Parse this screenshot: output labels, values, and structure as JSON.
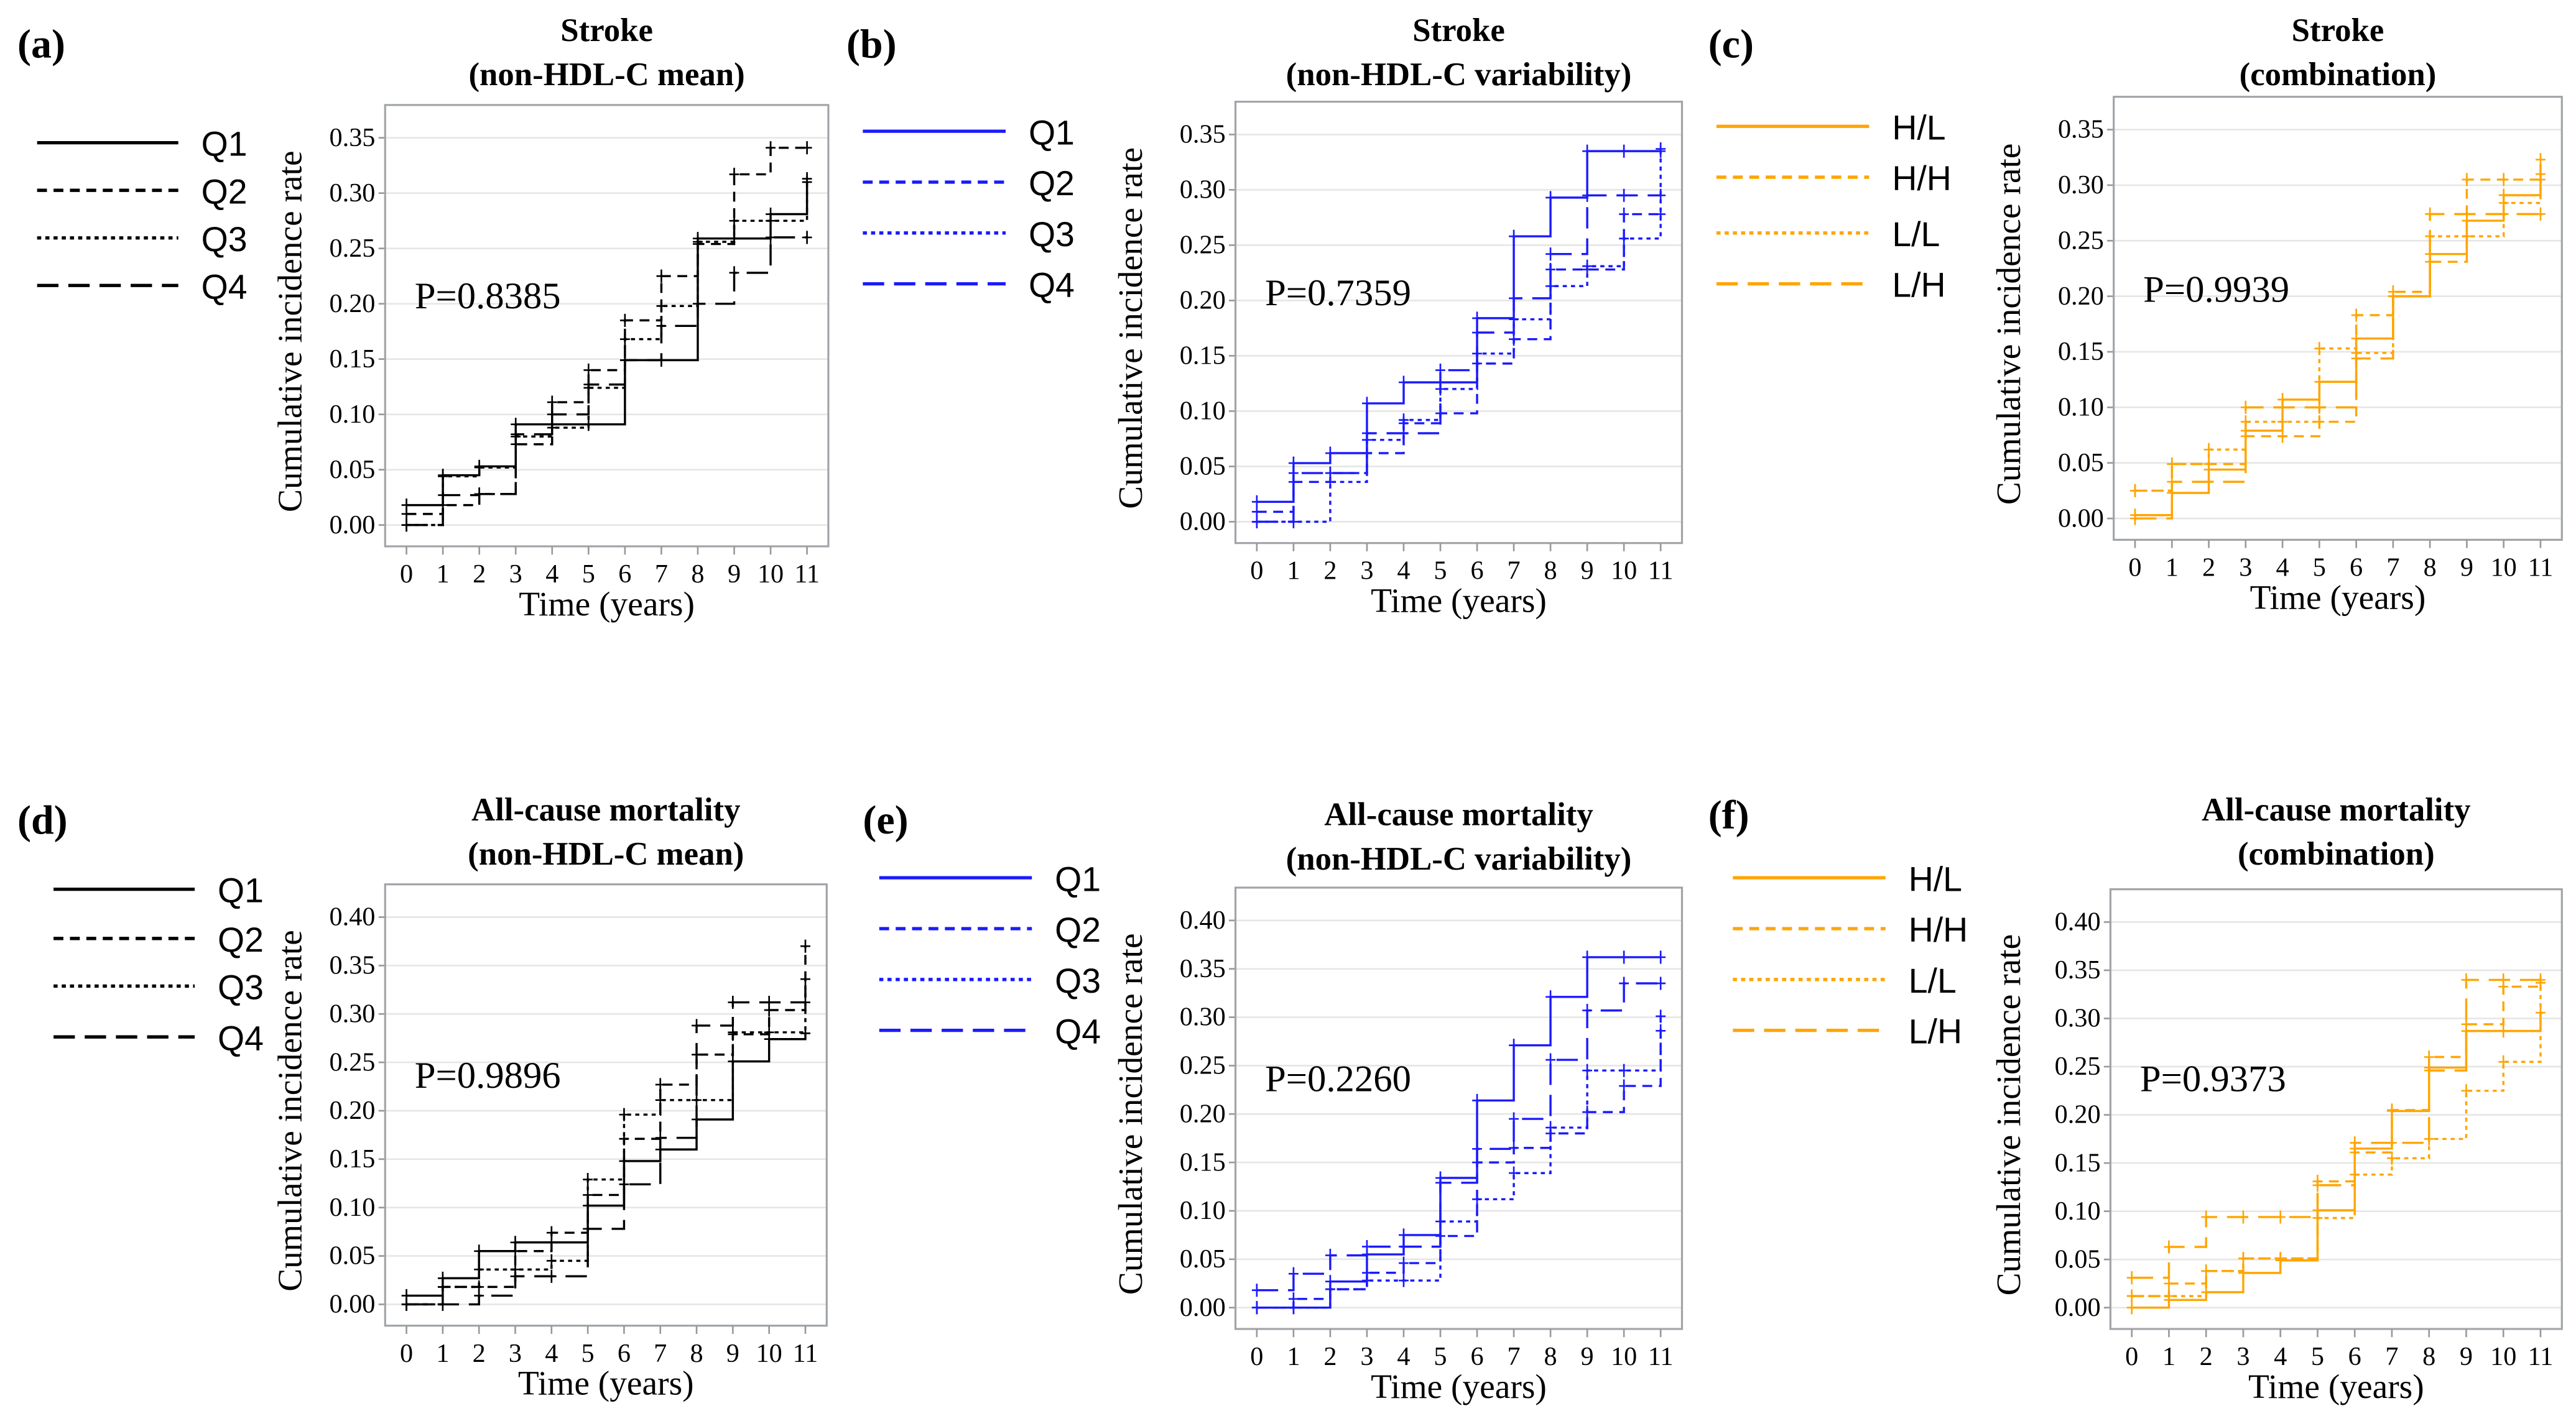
{
  "chart_data": [
    {
      "panel_label": "(a)",
      "type": "line",
      "step": true,
      "title": [
        "Stroke",
        "(non-HDL-C mean)"
      ],
      "xlabel": "Time (years)",
      "ylabel": "Cumulative incidence rate",
      "x": [
        0,
        1,
        2,
        3,
        4,
        5,
        6,
        7,
        8,
        9,
        10,
        11
      ],
      "xticks": [
        "0",
        "1",
        "2",
        "3",
        "4",
        "5",
        "6",
        "7",
        "8",
        "9",
        "10",
        "11"
      ],
      "yticks": [
        "0.00",
        "0.05",
        "0.10",
        "0.15",
        "0.20",
        "0.25",
        "0.30",
        "0.35"
      ],
      "ylim": [
        0,
        0.35
      ],
      "grid": true,
      "legend": "left",
      "p_value": "P=0.8385",
      "series": [
        {
          "name": "Q1",
          "color": "#000000",
          "linestyle": "solid",
          "values": [
            0.018,
            0.045,
            0.053,
            0.091,
            0.091,
            0.091,
            0.149,
            0.149,
            0.259,
            0.259,
            0.281,
            0.31
          ]
        },
        {
          "name": "Q2",
          "color": "#000000",
          "linestyle": "dashed",
          "values": [
            0.01,
            0.018,
            0.028,
            0.073,
            0.111,
            0.14,
            0.185,
            0.225,
            0.254,
            0.317,
            0.341,
            0.341
          ]
        },
        {
          "name": "Q3",
          "color": "#000000",
          "linestyle": "dotted",
          "values": [
            0.0,
            0.044,
            0.052,
            0.08,
            0.088,
            0.124,
            0.168,
            0.198,
            0.256,
            0.275,
            0.275,
            0.313
          ]
        },
        {
          "name": "Q4",
          "color": "#000000",
          "linestyle": "longdash",
          "values": [
            0.0,
            0.027,
            0.028,
            0.082,
            0.1,
            0.127,
            0.149,
            0.18,
            0.2,
            0.228,
            0.26,
            0.26
          ]
        }
      ]
    },
    {
      "panel_label": "(b)",
      "type": "line",
      "step": true,
      "title": [
        "Stroke",
        "(non-HDL-C variability)"
      ],
      "xlabel": "Time (years)",
      "ylabel": "Cumulative incidence rate",
      "x": [
        0,
        1,
        2,
        3,
        4,
        5,
        6,
        7,
        8,
        9,
        10,
        11
      ],
      "xticks": [
        "0",
        "1",
        "2",
        "3",
        "4",
        "5",
        "6",
        "7",
        "8",
        "9",
        "10",
        "11"
      ],
      "yticks": [
        "0.00",
        "0.05",
        "0.10",
        "0.15",
        "0.20",
        "0.25",
        "0.30",
        "0.35"
      ],
      "ylim": [
        0,
        0.35
      ],
      "grid": true,
      "legend": "left",
      "p_value": "P=0.7359",
      "series": [
        {
          "name": "Q1",
          "color": "#1a1aff",
          "linestyle": "solid",
          "values": [
            0.018,
            0.053,
            0.062,
            0.107,
            0.126,
            0.126,
            0.184,
            0.258,
            0.293,
            0.335,
            0.335,
            0.335
          ]
        },
        {
          "name": "Q2",
          "color": "#1a1aff",
          "linestyle": "dashed",
          "values": [
            0.009,
            0.036,
            0.044,
            0.062,
            0.089,
            0.098,
            0.143,
            0.165,
            0.228,
            0.228,
            0.278,
            0.278
          ]
        },
        {
          "name": "Q3",
          "color": "#1a1aff",
          "linestyle": "dotted",
          "values": [
            0.0,
            0.0,
            0.036,
            0.074,
            0.092,
            0.12,
            0.152,
            0.183,
            0.213,
            0.231,
            0.256,
            0.337
          ]
        },
        {
          "name": "Q4",
          "color": "#1a1aff",
          "linestyle": "longdash",
          "values": [
            0.0,
            0.044,
            0.044,
            0.08,
            0.08,
            0.137,
            0.171,
            0.202,
            0.242,
            0.295,
            0.295,
            0.295
          ]
        }
      ]
    },
    {
      "panel_label": "(c)",
      "type": "line",
      "step": true,
      "title": [
        "Stroke",
        "(combination)"
      ],
      "xlabel": "Time (years)",
      "ylabel": "Cumulative incidence rate",
      "x": [
        0,
        1,
        2,
        3,
        4,
        5,
        6,
        7,
        8,
        9,
        10,
        11
      ],
      "xticks": [
        "0",
        "1",
        "2",
        "3",
        "4",
        "5",
        "6",
        "7",
        "8",
        "9",
        "10",
        "11"
      ],
      "yticks": [
        "0.00",
        "0.05",
        "0.10",
        "0.15",
        "0.20",
        "0.25",
        "0.30",
        "0.35"
      ],
      "ylim": [
        0,
        0.35
      ],
      "grid": true,
      "legend": "left",
      "p_value": "P=0.9939",
      "series": [
        {
          "name": "H/L",
          "color": "#ffa500",
          "linestyle": "solid",
          "values": [
            0.003,
            0.023,
            0.044,
            0.079,
            0.107,
            0.123,
            0.162,
            0.2,
            0.238,
            0.268,
            0.291,
            0.31
          ]
        },
        {
          "name": "H/H",
          "color": "#ffa500",
          "linestyle": "dashed",
          "values": [
            0.025,
            0.049,
            0.049,
            0.074,
            0.074,
            0.087,
            0.183,
            0.204,
            0.231,
            0.305,
            0.305,
            0.323
          ]
        },
        {
          "name": "L/L",
          "color": "#ffa500",
          "linestyle": "dotted",
          "values": [
            0.025,
            0.049,
            0.062,
            0.087,
            0.087,
            0.153,
            0.149,
            0.2,
            0.254,
            0.254,
            0.284,
            0.305
          ]
        },
        {
          "name": "L/H",
          "color": "#ffa500",
          "linestyle": "longdash",
          "values": [
            0.0,
            0.033,
            0.033,
            0.1,
            0.1,
            0.1,
            0.144,
            0.2,
            0.274,
            0.274,
            0.274,
            0.274
          ]
        }
      ]
    },
    {
      "panel_label": "(d)",
      "type": "line",
      "step": true,
      "title": [
        "All-cause mortality",
        "(non-HDL-C mean)"
      ],
      "xlabel": "Time (years)",
      "ylabel": "Cumulative incidence rate",
      "x": [
        0,
        1,
        2,
        3,
        4,
        5,
        6,
        7,
        8,
        9,
        10,
        11
      ],
      "xticks": [
        "0",
        "1",
        "2",
        "3",
        "4",
        "5",
        "6",
        "7",
        "8",
        "9",
        "10",
        "11"
      ],
      "yticks": [
        "0.00",
        "0.05",
        "0.10",
        "0.15",
        "0.20",
        "0.25",
        "0.30",
        "0.35",
        "0.40"
      ],
      "ylim": [
        0,
        0.4
      ],
      "grid": true,
      "legend": "left",
      "p_value": "P=0.9896",
      "series": [
        {
          "name": "Q1",
          "color": "#000000",
          "linestyle": "solid",
          "values": [
            0.009,
            0.027,
            0.055,
            0.064,
            0.064,
            0.102,
            0.148,
            0.16,
            0.191,
            0.251,
            0.274,
            0.28
          ]
        },
        {
          "name": "Q2",
          "color": "#000000",
          "linestyle": "dashed",
          "values": [
            0.0,
            0.018,
            0.018,
            0.055,
            0.074,
            0.113,
            0.171,
            0.227,
            0.258,
            0.279,
            0.304,
            0.37
          ]
        },
        {
          "name": "Q3",
          "color": "#000000",
          "linestyle": "dotted",
          "values": [
            0.0,
            0.018,
            0.036,
            0.036,
            0.045,
            0.129,
            0.196,
            0.211,
            0.211,
            0.281,
            0.281,
            0.336
          ]
        },
        {
          "name": "Q4",
          "color": "#000000",
          "linestyle": "longdash",
          "values": [
            0.0,
            0.0,
            0.009,
            0.029,
            0.029,
            0.078,
            0.124,
            0.172,
            0.288,
            0.312,
            0.312,
            0.312
          ]
        }
      ]
    },
    {
      "panel_label": "(e)",
      "type": "line",
      "step": true,
      "title": [
        "All-cause mortality",
        "(non-HDL-C variability)"
      ],
      "xlabel": "Time (years)",
      "ylabel": "Cumulative incidence rate",
      "x": [
        0,
        1,
        2,
        3,
        4,
        5,
        6,
        7,
        8,
        9,
        10,
        11
      ],
      "xticks": [
        "0",
        "1",
        "2",
        "3",
        "4",
        "5",
        "6",
        "7",
        "8",
        "9",
        "10",
        "11"
      ],
      "yticks": [
        "0.00",
        "0.05",
        "0.10",
        "0.15",
        "0.20",
        "0.25",
        "0.30",
        "0.35",
        "0.40"
      ],
      "ylim": [
        0,
        0.4
      ],
      "grid": true,
      "legend": "left",
      "p_value": "P=0.2260",
      "series": [
        {
          "name": "Q1",
          "color": "#1a1aff",
          "linestyle": "solid",
          "values": [
            0.0,
            0.0,
            0.027,
            0.055,
            0.075,
            0.134,
            0.214,
            0.271,
            0.321,
            0.362,
            0.362,
            0.362
          ]
        },
        {
          "name": "Q2",
          "color": "#1a1aff",
          "linestyle": "dashed",
          "values": [
            0.0,
            0.009,
            0.019,
            0.036,
            0.046,
            0.074,
            0.15,
            0.165,
            0.18,
            0.202,
            0.229,
            0.301
          ]
        },
        {
          "name": "Q3",
          "color": "#1a1aff",
          "linestyle": "dotted",
          "values": [
            0.0,
            0.0,
            0.019,
            0.028,
            0.028,
            0.089,
            0.112,
            0.139,
            0.186,
            0.245,
            0.245,
            0.286
          ]
        },
        {
          "name": "Q4",
          "color": "#1a1aff",
          "linestyle": "longdash",
          "values": [
            0.018,
            0.035,
            0.054,
            0.063,
            0.063,
            0.129,
            0.164,
            0.195,
            0.256,
            0.307,
            0.335,
            0.335
          ]
        }
      ]
    },
    {
      "panel_label": "(f)",
      "type": "line",
      "step": true,
      "title": [
        "All-cause mortality",
        "(combination)"
      ],
      "xlabel": "Time (years)",
      "ylabel": "Cumulative incidence rate",
      "x": [
        0,
        1,
        2,
        3,
        4,
        5,
        6,
        7,
        8,
        9,
        10,
        11
      ],
      "xticks": [
        "0",
        "1",
        "2",
        "3",
        "4",
        "5",
        "6",
        "7",
        "8",
        "9",
        "10",
        "11"
      ],
      "yticks": [
        "0.00",
        "0.05",
        "0.10",
        "0.15",
        "0.20",
        "0.25",
        "0.30",
        "0.35",
        "0.40"
      ],
      "ylim": [
        0,
        0.4
      ],
      "grid": true,
      "legend": "left",
      "p_value": "P=0.9373",
      "series": [
        {
          "name": "H/L",
          "color": "#ffa500",
          "linestyle": "solid",
          "values": [
            0.0,
            0.008,
            0.016,
            0.036,
            0.049,
            0.101,
            0.165,
            0.204,
            0.249,
            0.287,
            0.287,
            0.306
          ]
        },
        {
          "name": "H/H",
          "color": "#ffa500",
          "linestyle": "dashed",
          "values": [
            0.012,
            0.025,
            0.038,
            0.051,
            0.051,
            0.131,
            0.161,
            0.205,
            0.26,
            0.294,
            0.333,
            0.337
          ]
        },
        {
          "name": "L/L",
          "color": "#ffa500",
          "linestyle": "dotted",
          "values": [
            0.012,
            0.012,
            0.038,
            0.051,
            0.051,
            0.093,
            0.138,
            0.155,
            0.175,
            0.225,
            0.255,
            0.337
          ]
        },
        {
          "name": "L/H",
          "color": "#ffa500",
          "linestyle": "longdash",
          "values": [
            0.031,
            0.063,
            0.094,
            0.094,
            0.094,
            0.127,
            0.171,
            0.171,
            0.246,
            0.34,
            0.34,
            0.34
          ]
        }
      ]
    }
  ]
}
